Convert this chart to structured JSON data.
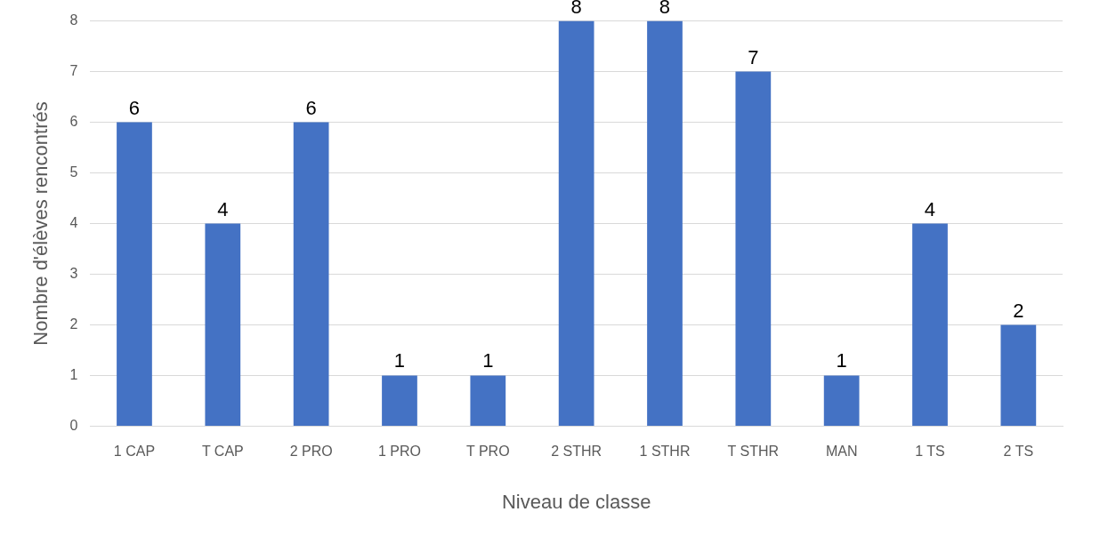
{
  "chart_data": {
    "type": "bar",
    "xlabel": "Niveau de classe",
    "ylabel": "Nombre d'élèves rencontrés",
    "categories": [
      "1 CAP",
      "T CAP",
      "2 PRO",
      "1 PRO",
      "T PRO",
      "2 STHR",
      "1 STHR",
      "T STHR",
      "MAN",
      "1 TS",
      "2 TS"
    ],
    "values": [
      6,
      4,
      6,
      1,
      1,
      8,
      8,
      7,
      1,
      4,
      2
    ],
    "color": "#4472c4",
    "ylim": [
      0,
      8
    ],
    "yticks": [
      0,
      1,
      2,
      3,
      4,
      5,
      6,
      7,
      8
    ],
    "grid": "y",
    "data_labels": true,
    "legend": false
  }
}
